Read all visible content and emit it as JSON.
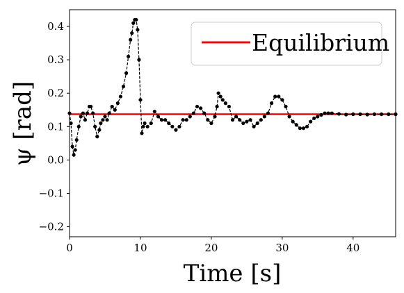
{
  "chart_data": {
    "type": "line",
    "xlabel": "Time [s]",
    "ylabel": "ψ [rad]",
    "xlim": [
      0,
      46
    ],
    "ylim": [
      -0.23,
      0.45
    ],
    "x_ticks": [
      0,
      10,
      20,
      30,
      40
    ],
    "x_tick_labels": [
      "0",
      "10",
      "20",
      "30",
      "40"
    ],
    "y_ticks": [
      -0.2,
      -0.1,
      0.0,
      0.1,
      0.2,
      0.3,
      0.4
    ],
    "y_tick_labels": [
      "−0.2",
      "−0.1",
      "0.0",
      "0.1",
      "0.2",
      "0.3",
      "0.4"
    ],
    "grid": false,
    "legend_position": "top-right",
    "series": [
      {
        "name": "Equilibrium",
        "color": "#ff0000",
        "style": "solid",
        "x": [
          0,
          46
        ],
        "y": [
          0.137,
          0.137
        ]
      },
      {
        "color": "#000000",
        "style": "dashed-with-dots",
        "x": [
          0.0,
          0.2,
          0.4,
          0.6,
          0.8,
          1.0,
          1.3,
          1.6,
          1.9,
          2.2,
          2.5,
          2.8,
          3.0,
          3.3,
          3.6,
          3.9,
          4.2,
          4.4,
          4.7,
          5.0,
          5.3,
          5.6,
          6.0,
          6.4,
          6.8,
          7.2,
          7.6,
          8.0,
          8.3,
          8.6,
          8.8,
          9.0,
          9.2,
          9.4,
          9.6,
          9.8,
          10.0,
          10.2,
          10.4,
          10.6,
          11.0,
          11.5,
          12.0,
          12.5,
          13.0,
          13.5,
          14.0,
          14.5,
          15.0,
          15.5,
          16.0,
          16.5,
          17.0,
          17.5,
          18.0,
          18.5,
          19.0,
          19.5,
          20.0,
          20.5,
          20.8,
          21.0,
          21.3,
          21.6,
          22.0,
          22.5,
          23.0,
          23.5,
          24.0,
          24.5,
          25.0,
          25.5,
          26.0,
          26.5,
          27.0,
          27.5,
          28.0,
          28.5,
          29.0,
          29.5,
          30.0,
          30.5,
          31.0,
          31.5,
          32.0,
          32.5,
          33.0,
          33.5,
          34.0,
          34.5,
          35.0,
          35.5,
          36.0,
          36.5,
          37.0,
          38.0,
          39.0,
          40.0,
          41.0,
          42.0,
          43.0,
          44.0,
          45.0,
          46.0
        ],
        "y": [
          0.14,
          0.11,
          0.04,
          0.015,
          0.03,
          0.06,
          0.1,
          0.13,
          0.14,
          0.12,
          0.14,
          0.16,
          0.16,
          0.14,
          0.1,
          0.07,
          0.09,
          0.11,
          0.12,
          0.13,
          0.12,
          0.14,
          0.16,
          0.15,
          0.17,
          0.19,
          0.22,
          0.26,
          0.31,
          0.36,
          0.38,
          0.41,
          0.42,
          0.42,
          0.39,
          0.3,
          0.18,
          0.08,
          0.1,
          0.11,
          0.1,
          0.11,
          0.145,
          0.13,
          0.12,
          0.12,
          0.11,
          0.1,
          0.09,
          0.1,
          0.12,
          0.12,
          0.13,
          0.14,
          0.16,
          0.155,
          0.14,
          0.12,
          0.11,
          0.13,
          0.16,
          0.2,
          0.19,
          0.18,
          0.17,
          0.16,
          0.12,
          0.13,
          0.12,
          0.11,
          0.115,
          0.12,
          0.1,
          0.11,
          0.12,
          0.13,
          0.14,
          0.17,
          0.19,
          0.19,
          0.18,
          0.16,
          0.13,
          0.115,
          0.105,
          0.095,
          0.095,
          0.1,
          0.115,
          0.125,
          0.13,
          0.135,
          0.14,
          0.14,
          0.14,
          0.138,
          0.136,
          0.137,
          0.137,
          0.136,
          0.137,
          0.137,
          0.137,
          0.137
        ]
      }
    ]
  }
}
